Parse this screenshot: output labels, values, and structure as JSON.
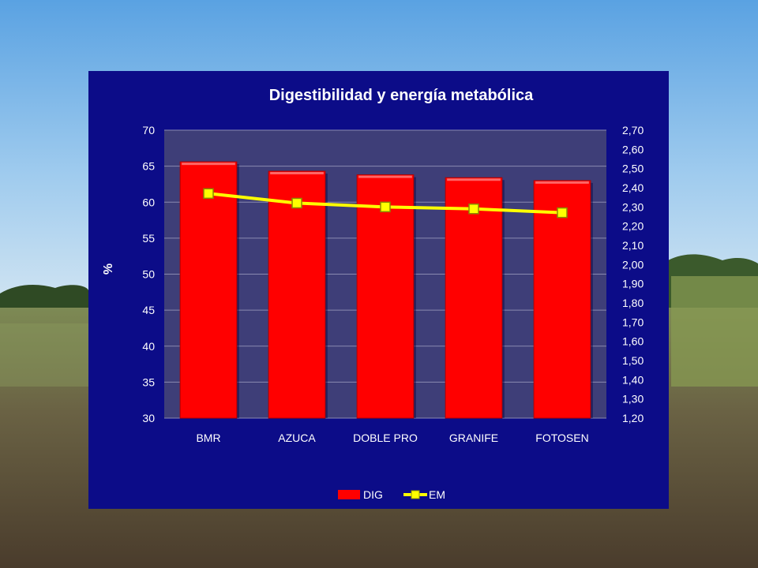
{
  "chart_data": {
    "type": "bar",
    "title": "Digestibilidad y energía metabólica",
    "ylabel": "%",
    "y2label": "",
    "categories": [
      "BMR",
      "AZUCA",
      "DOBLE PRO",
      "GRANIFE",
      "FOTOSEN"
    ],
    "ylim": [
      30,
      70
    ],
    "yticks": [
      "30",
      "35",
      "40",
      "45",
      "50",
      "55",
      "60",
      "65",
      "70"
    ],
    "y2lim": [
      1.2,
      2.7
    ],
    "y2ticks": [
      "1,20",
      "1,30",
      "1,40",
      "1,50",
      "1,60",
      "1,70",
      "1,80",
      "1,90",
      "2,00",
      "2,10",
      "2,20",
      "2,30",
      "2,40",
      "2,50",
      "2,60",
      "2,70"
    ],
    "grid": true,
    "legend_position": "bottom",
    "series": [
      {
        "name": "DIG",
        "type": "bar",
        "axis": "left",
        "color": "#ff0000",
        "values": [
          65.6,
          64.3,
          63.8,
          63.4,
          63.0
        ]
      },
      {
        "name": "EM",
        "type": "line",
        "axis": "right",
        "color": "#ffff00",
        "values": [
          2.37,
          2.32,
          2.3,
          2.29,
          2.27
        ]
      }
    ]
  },
  "colors": {
    "panel": "#0c0c88",
    "plot_area": "#3e3e78",
    "bar": "#ff0000",
    "line": "#ffff00"
  }
}
